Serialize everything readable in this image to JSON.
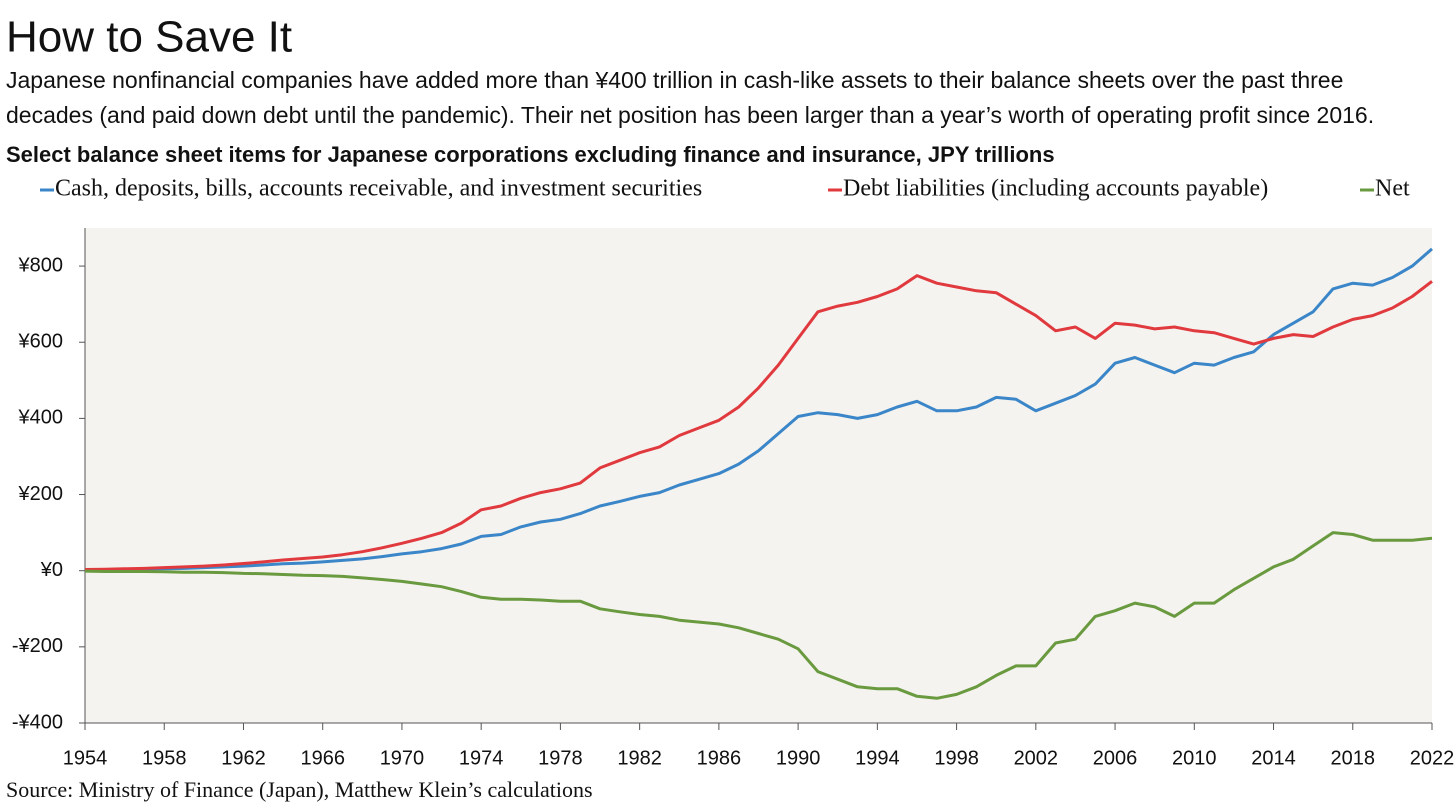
{
  "chart_data": {
    "type": "line",
    "title": "How to Save It",
    "subtitle": [
      "Japanese nonfinancial companies have added more than ¥400 trillion in cash-like assets to their balance sheets over the past three",
      "decades (and paid down debt until the pandemic). Their net position has been larger than a year’s worth of operating profit since 2016."
    ],
    "chart_title": "Select balance sheet items for Japanese corporations excluding finance and insurance, JPY trillions",
    "source": "Source: Ministry of Finance (Japan), Matthew Klein’s calculations",
    "x": [
      1954,
      1955,
      1956,
      1957,
      1958,
      1959,
      1960,
      1961,
      1962,
      1963,
      1964,
      1965,
      1966,
      1967,
      1968,
      1969,
      1970,
      1971,
      1972,
      1973,
      1974,
      1975,
      1976,
      1977,
      1978,
      1979,
      1980,
      1981,
      1982,
      1983,
      1984,
      1985,
      1986,
      1987,
      1988,
      1989,
      1990,
      1991,
      1992,
      1993,
      1994,
      1995,
      1996,
      1997,
      1998,
      1999,
      2000,
      2001,
      2002,
      2003,
      2004,
      2005,
      2006,
      2007,
      2008,
      2009,
      2010,
      2011,
      2012,
      2013,
      2014,
      2015,
      2016,
      2017,
      2018,
      2019,
      2020,
      2021,
      2022
    ],
    "series": [
      {
        "name": "Cash, deposits, bills, accounts receivable, and investment securities",
        "color": "#3a86c8",
        "values": [
          2,
          2,
          3,
          4,
          5,
          6,
          8,
          10,
          12,
          15,
          18,
          20,
          23,
          27,
          31,
          37,
          44,
          50,
          58,
          70,
          90,
          95,
          115,
          128,
          135,
          150,
          170,
          182,
          195,
          205,
          225,
          240,
          255,
          280,
          315,
          360,
          405,
          415,
          410,
          400,
          410,
          430,
          445,
          420,
          420,
          430,
          455,
          450,
          420,
          440,
          460,
          490,
          545,
          560,
          540,
          520,
          545,
          540,
          560,
          575,
          620,
          650,
          680,
          740,
          755,
          750,
          770,
          800,
          845
        ]
      },
      {
        "name": "Debt liabilities (including accounts payable)",
        "color": "#e0393e",
        "values": [
          3,
          4,
          5,
          6,
          8,
          10,
          12,
          15,
          19,
          23,
          28,
          32,
          36,
          42,
          50,
          60,
          72,
          85,
          100,
          125,
          160,
          170,
          190,
          205,
          215,
          230,
          270,
          290,
          310,
          325,
          355,
          375,
          395,
          430,
          480,
          540,
          610,
          680,
          695,
          705,
          720,
          740,
          775,
          755,
          745,
          735,
          730,
          700,
          670,
          630,
          640,
          610,
          650,
          645,
          635,
          640,
          630,
          625,
          610,
          595,
          610,
          620,
          615,
          640,
          660,
          670,
          690,
          720,
          760
        ]
      },
      {
        "name": "Net",
        "color": "#6a9a3f",
        "values": [
          -1,
          -2,
          -2,
          -2,
          -3,
          -4,
          -4,
          -5,
          -7,
          -8,
          -10,
          -12,
          -13,
          -15,
          -19,
          -23,
          -28,
          -35,
          -42,
          -55,
          -70,
          -75,
          -75,
          -77,
          -80,
          -80,
          -100,
          -108,
          -115,
          -120,
          -130,
          -135,
          -140,
          -150,
          -165,
          -180,
          -205,
          -265,
          -285,
          -305,
          -310,
          -310,
          -330,
          -335,
          -325,
          -305,
          -275,
          -250,
          -250,
          -190,
          -180,
          -120,
          -105,
          -85,
          -95,
          -120,
          -85,
          -85,
          -50,
          -20,
          10,
          30,
          65,
          100,
          95,
          80,
          80,
          80,
          85
        ]
      }
    ],
    "xlim": [
      1954,
      2022
    ],
    "xticks": [
      1954,
      1958,
      1962,
      1966,
      1970,
      1974,
      1978,
      1982,
      1986,
      1990,
      1994,
      1998,
      2002,
      2006,
      2010,
      2014,
      2018,
      2022
    ],
    "ylim": [
      -400,
      900
    ],
    "yticks": [
      {
        "value": -400,
        "label": "-¥400"
      },
      {
        "value": -200,
        "label": "-¥200"
      },
      {
        "value": 0,
        "label": "¥0"
      },
      {
        "value": 200,
        "label": "¥200"
      },
      {
        "value": 400,
        "label": "¥400"
      },
      {
        "value": 600,
        "label": "¥600"
      },
      {
        "value": 800,
        "label": "¥800"
      }
    ],
    "grid": false,
    "legend": "top",
    "plot_background": "#f5f3ef"
  }
}
